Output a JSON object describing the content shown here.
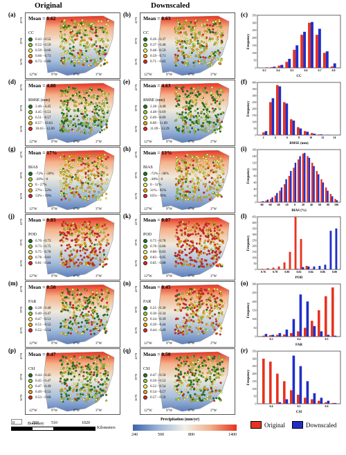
{
  "headers": {
    "original": "Original",
    "downscaled": "Downscaled"
  },
  "lon_ticks": [
    "12°W",
    "9°W",
    "6°W",
    "3°W"
  ],
  "lat_ticks": [
    "42°N",
    "39°N",
    "36°N"
  ],
  "rows": [
    {
      "labels": [
        "(a)",
        "(b)",
        "(c)"
      ],
      "orig": {
        "mean": "Mean = 0.62",
        "title": "CC",
        "items": [
          "0.43 - 0.52",
          "0.52 - 0.59",
          "0.59 - 0.66",
          "0.66 - 0.73",
          "0.73 - 0.80"
        ]
      },
      "down": {
        "mean": "Mean = 0.63",
        "title": "CC",
        "items": [
          "0.26 - 0.37",
          "0.37 - 0.48",
          "0.48 - 0.59",
          "0.59 - 0.71",
          "0.71 - 0.82"
        ]
      },
      "hist": {
        "xlabel": "CC",
        "ylabel": "Frequency",
        "yticks": [
          "0",
          "50",
          "100",
          "150",
          "200",
          "250",
          "300",
          "350"
        ],
        "xticks": [
          "0.3",
          "0.4",
          "0.5",
          "0.6",
          "0.7",
          "0.8"
        ]
      }
    },
    {
      "labels": [
        "(d)",
        "(e)",
        "(f)"
      ],
      "orig": {
        "mean": "Mean = 4.80",
        "title": "RMSE (mm)",
        "items": [
          "2.40 - 4.45",
          "4.45 - 6.51",
          "6.51 - 8.57",
          "8.57 - 10.63",
          "10.63 - 12.69"
        ]
      },
      "down": {
        "mean": "Mean = 4.63",
        "title": "RMSE (mm)",
        "items": [
          "2.28 - 4.48",
          "4.48 - 6.69",
          "6.69 - 8.89",
          "8.89 - 11.09",
          "11.09 - 13.29"
        ]
      },
      "hist": {
        "xlabel": "RMSE (mm)",
        "ylabel": "Frequency",
        "yticks": [
          "0",
          "50",
          "100",
          "150",
          "200",
          "250",
          "300",
          "350",
          "400"
        ],
        "xticks": [
          "2",
          "4",
          "6",
          "8",
          "10",
          "12",
          "14"
        ]
      }
    },
    {
      "labels": [
        "(g)",
        "(h)",
        "(i)"
      ],
      "orig": {
        "mean": "Mean = 17%",
        "title": "BIAS",
        "items": [
          "-72% - -20%",
          "-20% - 0",
          "0 - 27%",
          "27% - 53%",
          "53% - 99%"
        ]
      },
      "down": {
        "mean": "Mean = 13%",
        "title": "BIAS",
        "items": [
          "-72% - -38%",
          "-38% - 0",
          "0 - 31%",
          "31% - 65%",
          "65% - 99%"
        ]
      },
      "hist": {
        "xlabel": "BIAS (%)",
        "ylabel": "Frequency",
        "yticks": [
          "0",
          "20",
          "40",
          "60",
          "80",
          "100",
          "120",
          "140",
          "160"
        ],
        "xticks": [
          "-80",
          "-60",
          "-40",
          "-20",
          "0",
          "20",
          "40",
          "60",
          "80",
          "100"
        ]
      }
    },
    {
      "labels": [
        "(j)",
        "(k)",
        "(l)"
      ],
      "orig": {
        "mean": "Mean = 0.83",
        "title": "POD",
        "items": [
          "0.70 - 0.73",
          "0.73 - 0.75",
          "0.75 - 0.78",
          "0.78 - 0.81",
          "0.81 - 0.84"
        ]
      },
      "down": {
        "mean": "Mean = 0.87",
        "title": "POD",
        "items": [
          "0.75 - 0.78",
          "0.78 - 0.80",
          "0.80 - 0.83",
          "0.83 - 0.85",
          "0.85 - 0.88"
        ]
      },
      "hist": {
        "xlabel": "POD",
        "ylabel": "Frequency",
        "yticks": [
          "0",
          "50",
          "100",
          "150",
          "200",
          "250",
          "300",
          "350",
          "400",
          "450"
        ],
        "xticks": [
          "0.76",
          "0.78",
          "0.80",
          "0.82",
          "0.84",
          "0.86",
          "0.88"
        ]
      }
    },
    {
      "labels": [
        "(m)",
        "(n)",
        "(o)"
      ],
      "orig": {
        "mean": "Mean = 0.50",
        "title": "FAR",
        "items": [
          "0.28 - 0.40",
          "0.40 - 0.47",
          "0.47 - 0.51",
          "0.51 - 0.52",
          "0.52 - 0.54"
        ]
      },
      "down": {
        "mean": "Mean = 0.45",
        "title": "FAR",
        "items": [
          "0.25 - 0.30",
          "0.30 - 0.34",
          "0.34 - 0.39",
          "0.39 - 0.44",
          "0.44 - 0.49"
        ]
      },
      "hist": {
        "xlabel": "FAR",
        "ylabel": "Frequency",
        "yticks": [
          "0",
          "50",
          "100",
          "150",
          "200",
          "250",
          "300"
        ],
        "xticks": [
          "0.3",
          "0.4",
          "0.5"
        ]
      }
    },
    {
      "labels": [
        "(p)",
        "(q)",
        "(r)"
      ],
      "orig": {
        "mean": "Mean = 0.47",
        "title": "CSI",
        "items": [
          "0.44 - 0.45",
          "0.45 - 0.47",
          "0.47 - 0.49",
          "0.49 - 0.53",
          "0.53 - 0.60"
        ]
      },
      "down": {
        "mean": "Mean = 0.50",
        "title": "CSI",
        "items": [
          "0.47 - 0.50",
          "0.50 - 0.52",
          "0.52 - 0.54",
          "0.54 - 0.57",
          "0.57 - 0.59"
        ]
      },
      "hist": {
        "xlabel": "CSI",
        "ylabel": "Frequency",
        "yticks": [
          "0",
          "50",
          "100",
          "150",
          "200",
          "250",
          "300",
          "350"
        ],
        "xticks": [
          "0.4",
          "0.5",
          "0.6"
        ]
      }
    }
  ],
  "dot_colors": [
    "#1a7a1a",
    "#9acd32",
    "#ffff66",
    "#ffa500",
    "#e8221f"
  ],
  "bottom": {
    "boundary": "Boundary",
    "scale_ticks": [
      "0",
      "255",
      "510",
      "1020"
    ],
    "scale_unit": "Kilometers",
    "precip_title": "Precipitation (mm/yr)",
    "precip_ticks": [
      "240",
      "500",
      "800",
      "1400"
    ],
    "legend_original": "Original",
    "legend_downscaled": "Downscaled"
  },
  "colors": {
    "original": "#e8321f",
    "downscaled": "#1f2fc8"
  },
  "chart_data": [
    {
      "type": "bar",
      "xlabel": "CC",
      "ylabel": "Frequency",
      "ylim": [
        0,
        350
      ],
      "x": [
        0.35,
        0.4,
        0.45,
        0.5,
        0.55,
        0.6,
        0.65,
        0.7,
        0.75,
        0.8
      ],
      "series": [
        {
          "name": "Original",
          "values": [
            2,
            5,
            15,
            40,
            120,
            220,
            300,
            220,
            100,
            10
          ]
        },
        {
          "name": "Downscaled",
          "values": [
            3,
            8,
            20,
            60,
            150,
            240,
            305,
            260,
            110,
            30
          ]
        }
      ]
    },
    {
      "type": "bar",
      "xlabel": "RMSE (mm)",
      "ylabel": "Frequency",
      "ylim": [
        0,
        400
      ],
      "x": [
        2,
        3,
        4,
        5,
        6,
        7,
        8,
        9,
        10,
        11,
        12
      ],
      "series": [
        {
          "name": "Original",
          "values": [
            20,
            250,
            380,
            250,
            120,
            60,
            30,
            15,
            5,
            3,
            1
          ]
        },
        {
          "name": "Downscaled",
          "values": [
            30,
            280,
            370,
            240,
            110,
            50,
            25,
            10,
            5,
            2,
            1
          ]
        }
      ]
    },
    {
      "type": "bar",
      "xlabel": "BIAS (%)",
      "ylabel": "Frequency",
      "ylim": [
        0,
        160
      ],
      "x": [
        -70,
        -60,
        -50,
        -40,
        -30,
        -20,
        -10,
        0,
        10,
        20,
        30,
        40,
        50,
        60,
        70,
        80,
        90
      ],
      "series": [
        {
          "name": "Original",
          "values": [
            2,
            5,
            10,
            20,
            35,
            55,
            80,
            105,
            130,
            148,
            140,
            120,
            95,
            70,
            45,
            25,
            10
          ]
        },
        {
          "name": "Downscaled",
          "values": [
            3,
            8,
            15,
            28,
            45,
            70,
            95,
            120,
            140,
            150,
            135,
            110,
            85,
            60,
            35,
            18,
            6
          ]
        }
      ]
    },
    {
      "type": "bar",
      "xlabel": "POD",
      "ylabel": "Frequency",
      "ylim": [
        0,
        450
      ],
      "x": [
        0.77,
        0.79,
        0.8,
        0.81,
        0.815,
        0.82,
        0.825,
        0.83,
        0.84,
        0.85,
        0.86,
        0.87,
        0.875,
        0.88
      ],
      "series": [
        {
          "name": "Original",
          "values": [
            5,
            10,
            15,
            25,
            60,
            150,
            450,
            260,
            30,
            5,
            2,
            0,
            0,
            0
          ]
        },
        {
          "name": "Downscaled",
          "values": [
            0,
            0,
            0,
            0,
            0,
            0,
            5,
            20,
            25,
            25,
            30,
            40,
            330,
            350
          ]
        }
      ]
    },
    {
      "type": "bar",
      "xlabel": "FAR",
      "ylabel": "Frequency",
      "ylim": [
        0,
        300
      ],
      "x": [
        0.3,
        0.33,
        0.36,
        0.39,
        0.42,
        0.44,
        0.46,
        0.48,
        0.5,
        0.52,
        0.54
      ],
      "series": [
        {
          "name": "Original",
          "values": [
            5,
            8,
            10,
            12,
            20,
            30,
            50,
            90,
            150,
            230,
            280
          ]
        },
        {
          "name": "Downscaled",
          "values": [
            15,
            10,
            20,
            40,
            100,
            240,
            200,
            60,
            30,
            10,
            5
          ]
        }
      ]
    },
    {
      "type": "bar",
      "xlabel": "CSI",
      "ylabel": "Frequency",
      "ylim": [
        0,
        350
      ],
      "x": [
        0.44,
        0.45,
        0.46,
        0.47,
        0.48,
        0.5,
        0.52,
        0.54,
        0.56,
        0.58,
        0.6
      ],
      "series": [
        {
          "name": "Original",
          "values": [
            300,
            280,
            200,
            150,
            90,
            60,
            40,
            30,
            20,
            10,
            5
          ]
        },
        {
          "name": "Downscaled",
          "values": [
            0,
            0,
            10,
            30,
            320,
            250,
            150,
            70,
            40,
            20,
            5
          ]
        }
      ]
    }
  ]
}
